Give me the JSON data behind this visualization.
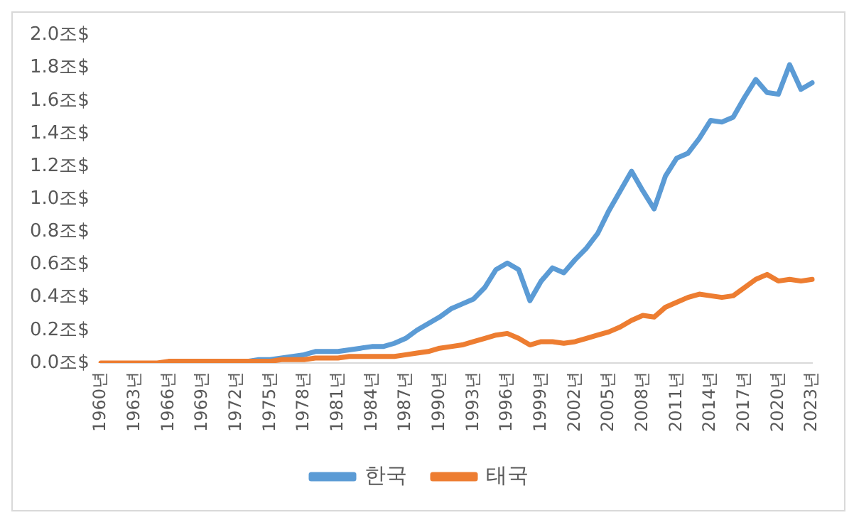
{
  "chart_data": {
    "type": "line",
    "categories": [
      "1960년",
      null,
      null,
      "1963년",
      null,
      null,
      "1966년",
      null,
      null,
      "1969년",
      null,
      null,
      "1972년",
      null,
      null,
      "1975년",
      null,
      null,
      "1978년",
      null,
      null,
      "1981년",
      null,
      null,
      "1984년",
      null,
      null,
      "1987년",
      null,
      null,
      "1990년",
      null,
      null,
      "1993년",
      null,
      null,
      "1996년",
      null,
      null,
      "1999년",
      null,
      null,
      "2002년",
      null,
      null,
      "2005년",
      null,
      null,
      "2008년",
      null,
      null,
      "2011년",
      null,
      null,
      "2014년",
      null,
      null,
      "2017년",
      null,
      null,
      "2020년",
      null,
      null,
      "2023년"
    ],
    "series": [
      {
        "name": "한국",
        "color": "#5b9bd5",
        "values": [
          null,
          null,
          null,
          null,
          null,
          null,
          null,
          null,
          null,
          null,
          null,
          null,
          null,
          0.01,
          0.02,
          0.02,
          0.03,
          0.04,
          0.05,
          0.07,
          0.07,
          0.07,
          0.08,
          0.09,
          0.1,
          0.1,
          0.12,
          0.15,
          0.2,
          0.24,
          0.28,
          0.33,
          0.36,
          0.39,
          0.46,
          0.57,
          0.61,
          0.57,
          0.38,
          0.5,
          0.58,
          0.55,
          0.63,
          0.7,
          0.79,
          0.93,
          1.05,
          1.17,
          1.05,
          0.94,
          1.14,
          1.25,
          1.28,
          1.37,
          1.48,
          1.47,
          1.5,
          1.62,
          1.73,
          1.65,
          1.64,
          1.82,
          1.67,
          1.71
        ]
      },
      {
        "name": "태국",
        "color": "#ed7d31",
        "values": [
          0,
          0,
          0,
          0,
          0,
          0,
          0.01,
          0.01,
          0.01,
          0.01,
          0.01,
          0.01,
          0.01,
          0.01,
          0.01,
          0.01,
          0.02,
          0.02,
          0.02,
          0.03,
          0.03,
          0.03,
          0.04,
          0.04,
          0.04,
          0.04,
          0.04,
          0.05,
          0.06,
          0.07,
          0.09,
          0.1,
          0.11,
          0.13,
          0.15,
          0.17,
          0.18,
          0.15,
          0.11,
          0.13,
          0.13,
          0.12,
          0.13,
          0.15,
          0.17,
          0.19,
          0.22,
          0.26,
          0.29,
          0.28,
          0.34,
          0.37,
          0.4,
          0.42,
          0.41,
          0.4,
          0.41,
          0.46,
          0.51,
          0.54,
          0.5,
          0.51,
          0.5,
          0.51
        ]
      }
    ],
    "ylim": [
      0,
      2
    ],
    "yticks": [
      {
        "value": 0,
        "label": "0.0조$"
      },
      {
        "value": 0.2,
        "label": "0.2조$"
      },
      {
        "value": 0.4,
        "label": "0.4조$"
      },
      {
        "value": 0.6,
        "label": "0.6조$"
      },
      {
        "value": 0.8,
        "label": "0.8조$"
      },
      {
        "value": 1,
        "label": "1.0조$"
      },
      {
        "value": 1.2,
        "label": "1.2조$"
      },
      {
        "value": 1.4,
        "label": "1.4조$"
      },
      {
        "value": 1.6,
        "label": "1.6조$"
      },
      {
        "value": 1.8,
        "label": "1.8조$"
      },
      {
        "value": 2,
        "label": "2.0조$"
      }
    ],
    "grid": false,
    "legend": "bottom",
    "marker": "none",
    "line_style": "solid"
  }
}
